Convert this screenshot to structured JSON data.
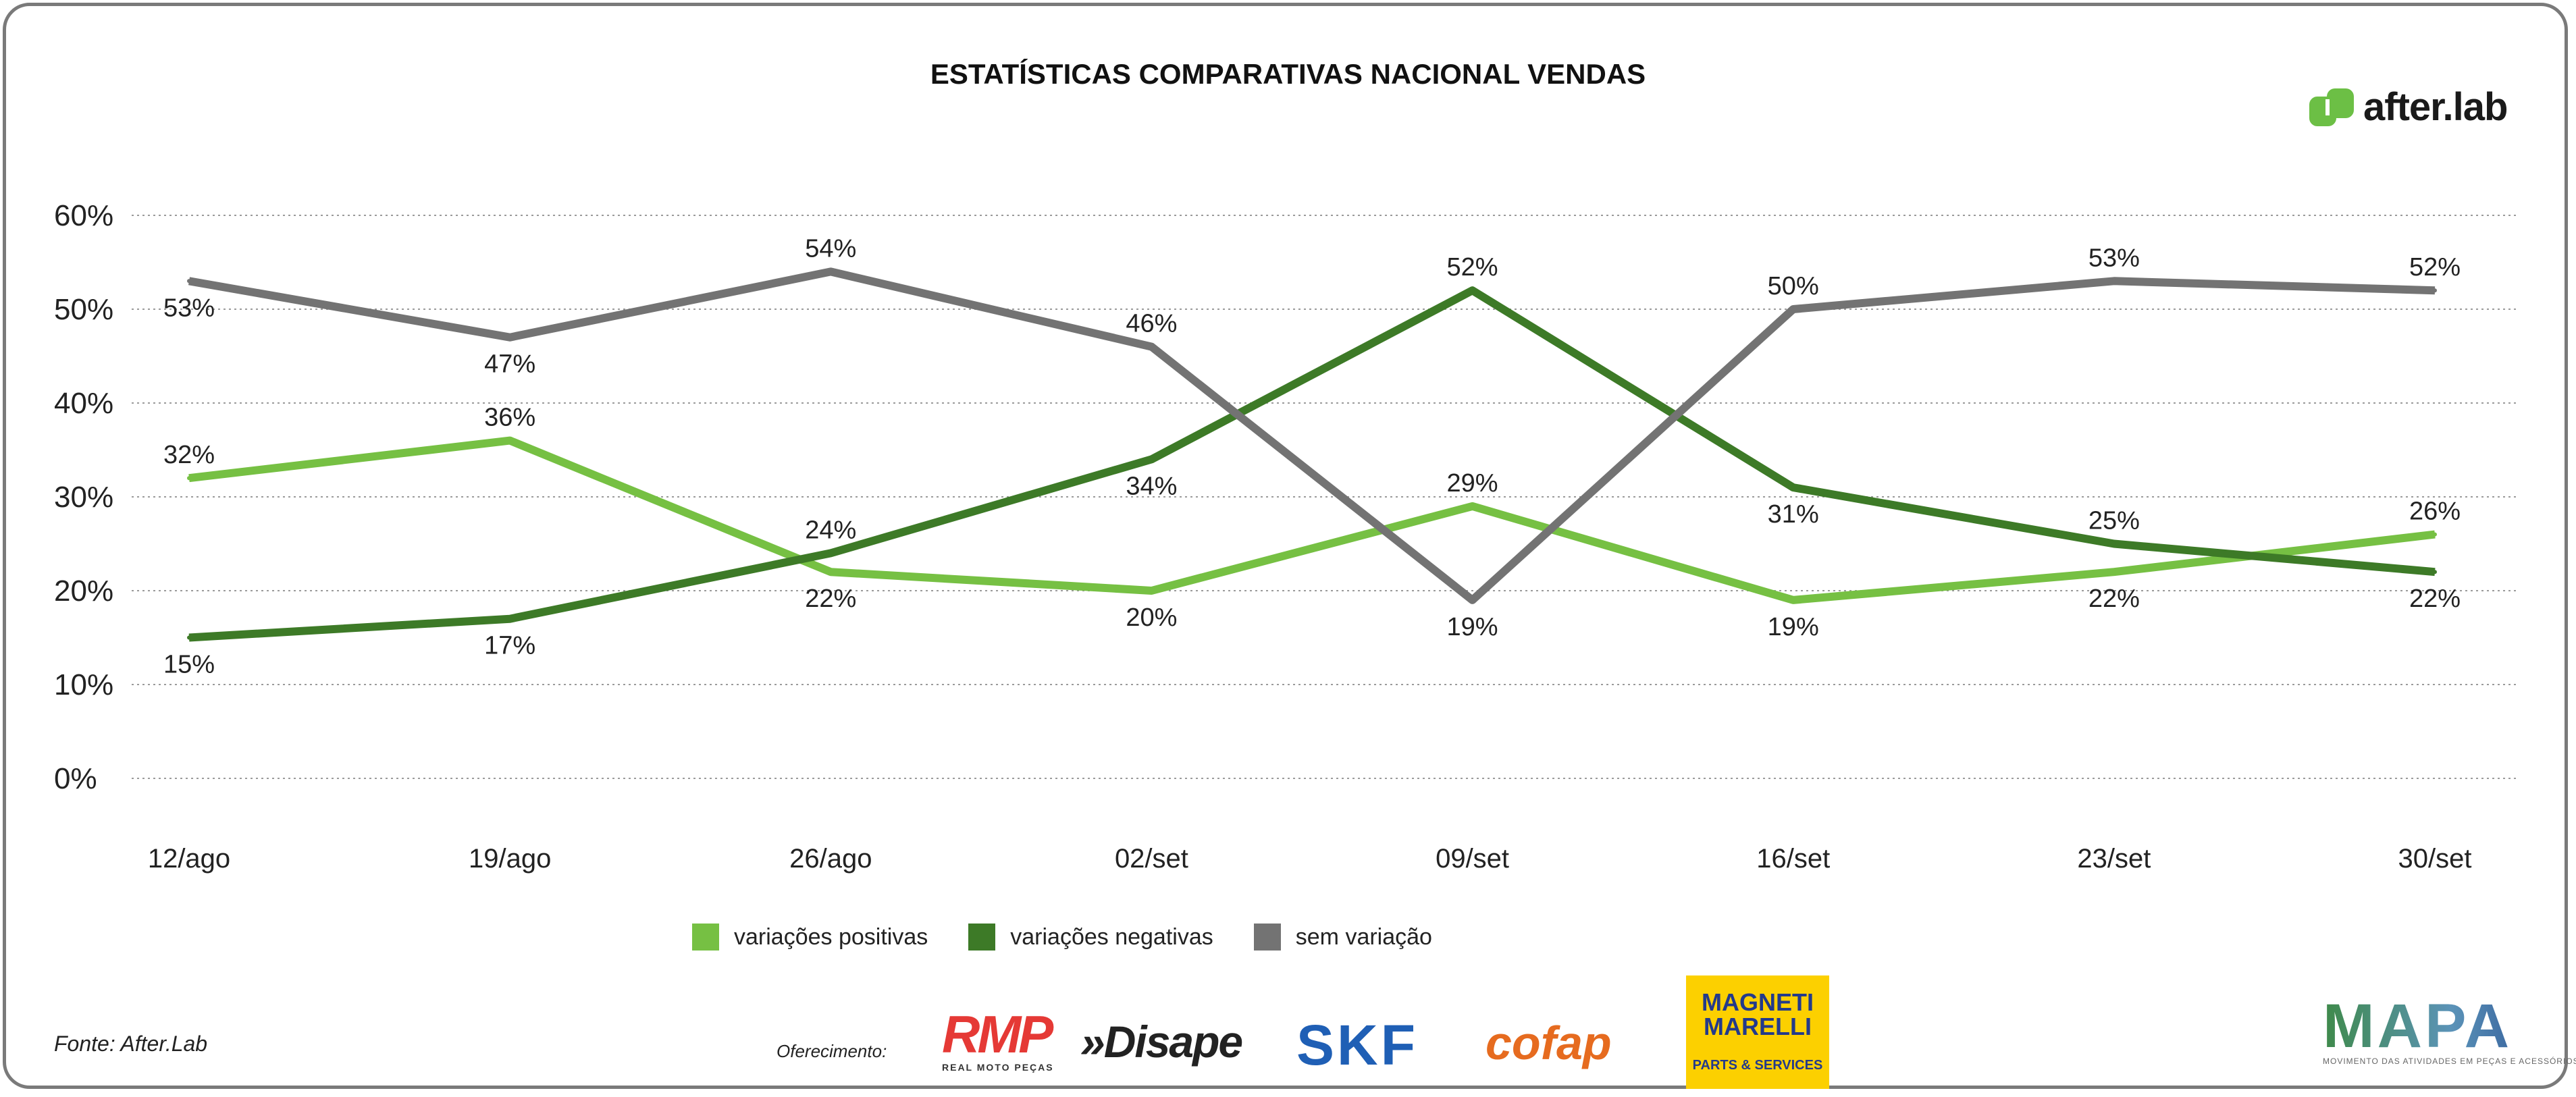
{
  "title": "ESTATÍSTICAS COMPARATIVAS NACIONAL VENDAS",
  "brand": "after.lab",
  "source": "Fonte: After.Lab",
  "sponsor_label": "Oferecimento:",
  "sponsors": {
    "rmp": "RMP",
    "rmp_sub": "REAL MOTO PEÇAS",
    "disape": "»Disape",
    "skf": "SKF",
    "cofap": "cofap",
    "mm_line1": "MAGNETI",
    "mm_line2": "MARELLI",
    "mm_sub": "PARTS & SERVICES"
  },
  "mapa": {
    "name": "MAPA",
    "tagline": "MOVIMENTO DAS ATIVIDADES EM PEÇAS E ACESSÓRIOS"
  },
  "colors": {
    "positive": "#76c043",
    "negative": "#3d7a27",
    "neutral": "#737373",
    "brand": "#6cbf45"
  },
  "chart_data": {
    "type": "line",
    "title": "ESTATÍSTICAS COMPARATIVAS NACIONAL VENDAS",
    "categories": [
      "12/ago",
      "19/ago",
      "26/ago",
      "02/set",
      "09/set",
      "16/set",
      "23/set",
      "30/set"
    ],
    "ylim": [
      0,
      60
    ],
    "yticks": [
      "0%",
      "10%",
      "20%",
      "30%",
      "40%",
      "50%",
      "60%"
    ],
    "grid": true,
    "legend_placement": "bottom",
    "series": [
      {
        "name": "variações positivas",
        "values": [
          32,
          36,
          22,
          20,
          29,
          19,
          22,
          26
        ],
        "color": "#76c043"
      },
      {
        "name": "variações negativas",
        "values": [
          15,
          17,
          24,
          34,
          52,
          31,
          25,
          22
        ],
        "color": "#3d7a27"
      },
      {
        "name": "sem variação",
        "values": [
          53,
          47,
          54,
          46,
          19,
          50,
          53,
          52
        ],
        "color": "#737373"
      }
    ]
  }
}
